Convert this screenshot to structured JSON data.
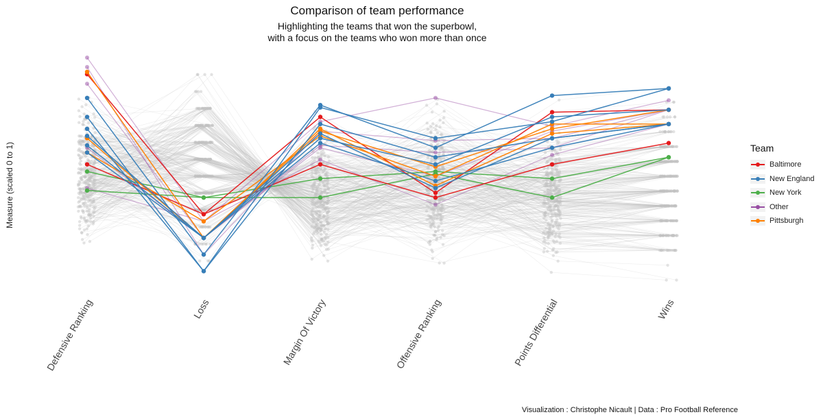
{
  "title": "Comparison of team performance",
  "subtitle": "Highlighting the teams that won the superbowl,\nwith a focus on the teams who won more than once",
  "caption": "Visualization : Christophe Nicault | Data : Pro Football Reference",
  "chart_data": {
    "type": "line",
    "ylabel": "Measure (scaled 0 to 1)",
    "xlabel": "",
    "ylim": [
      0,
      1
    ],
    "grid": false,
    "legend_position": "right",
    "categories": [
      "Defensive Ranking",
      "Loss",
      "Margin Of Victory",
      "Offensive Ranking",
      "Points Differential",
      "Wins"
    ],
    "legend": {
      "title": "Team",
      "items": [
        {
          "name": "Baltimore",
          "color": "#e41a1c"
        },
        {
          "name": "New England",
          "color": "#377eb8"
        },
        {
          "name": "New York",
          "color": "#4daf4a"
        },
        {
          "name": "Other",
          "color": "#984ea3"
        },
        {
          "name": "Pittsburgh",
          "color": "#ff7f00"
        }
      ]
    },
    "series": [
      {
        "team": "Baltimore",
        "values": [
          0.93,
          0.34,
          0.75,
          0.43,
          0.77,
          0.78
        ]
      },
      {
        "team": "Baltimore",
        "values": [
          0.55,
          0.34,
          0.55,
          0.41,
          0.55,
          0.64
        ]
      },
      {
        "team": "New England",
        "values": [
          0.83,
          0.17,
          0.8,
          0.62,
          0.84,
          0.87
        ]
      },
      {
        "team": "New England",
        "values": [
          0.75,
          0.1,
          0.79,
          0.66,
          0.73,
          0.87
        ]
      },
      {
        "team": "New England",
        "values": [
          0.7,
          0.1,
          0.72,
          0.58,
          0.66,
          0.72
        ]
      },
      {
        "team": "New England",
        "values": [
          0.67,
          0.24,
          0.66,
          0.55,
          0.75,
          0.78
        ]
      },
      {
        "team": "New England",
        "values": [
          0.63,
          0.24,
          0.68,
          0.45,
          0.66,
          0.72
        ]
      },
      {
        "team": "New England",
        "values": [
          0.6,
          0.24,
          0.64,
          0.48,
          0.62,
          0.72
        ]
      },
      {
        "team": "New York",
        "values": [
          0.52,
          0.41,
          0.49,
          0.52,
          0.49,
          0.58
        ]
      },
      {
        "team": "New York",
        "values": [
          0.44,
          0.41,
          0.41,
          0.51,
          0.41,
          0.58
        ]
      },
      {
        "team": "Other",
        "values": [
          1.0,
          0.31,
          0.73,
          0.83,
          0.71,
          0.82
        ]
      },
      {
        "team": "Other",
        "values": [
          0.96,
          0.17,
          0.69,
          0.65,
          0.66,
          0.78
        ]
      },
      {
        "team": "Other",
        "values": [
          0.89,
          0.24,
          0.63,
          0.6,
          0.62,
          0.78
        ]
      },
      {
        "team": "Other",
        "values": [
          0.62,
          0.24,
          0.62,
          0.5,
          0.69,
          0.78
        ]
      },
      {
        "team": "Other",
        "values": [
          0.45,
          0.31,
          0.57,
          0.38,
          0.59,
          0.72
        ]
      },
      {
        "team": "Pittsburgh",
        "values": [
          0.94,
          0.24,
          0.69,
          0.54,
          0.7,
          0.78
        ]
      },
      {
        "team": "Pittsburgh",
        "values": [
          0.66,
          0.24,
          0.7,
          0.46,
          0.68,
          0.72
        ]
      },
      {
        "team": "Pittsburgh",
        "values": [
          0.6,
          0.31,
          0.67,
          0.5,
          0.72,
          0.72
        ]
      }
    ]
  }
}
